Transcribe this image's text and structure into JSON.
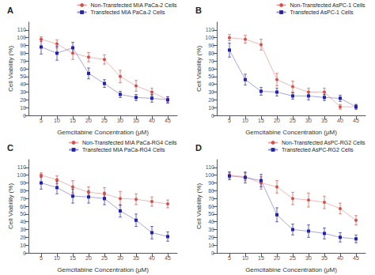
{
  "chart_data": [
    {
      "type": "line",
      "title": "A",
      "xlabel": "Gemcitabine Concentration (μM)",
      "ylabel": "Cell Viability (%)",
      "x": [
        5,
        10,
        15,
        20,
        25,
        30,
        35,
        40,
        45
      ],
      "xlim": [
        1,
        48
      ],
      "xticks": [
        5,
        10,
        15,
        20,
        25,
        30,
        35,
        40,
        45
      ],
      "ylim": [
        0,
        120
      ],
      "yticks": [
        0,
        10,
        20,
        30,
        40,
        50,
        60,
        70,
        80,
        90,
        100,
        110
      ],
      "grid": false,
      "legend": "upper right",
      "series": [
        {
          "name": "Non-Transfected MIA PaCa-2 Cells",
          "color": "#d4504a",
          "marker": "circle",
          "values": [
            98,
            92,
            80,
            75,
            72,
            50,
            38,
            30,
            20
          ],
          "errors": [
            3,
            5,
            8,
            6,
            6,
            8,
            7,
            5,
            4
          ]
        },
        {
          "name": "Transfected MIA PaCa-2 Cells",
          "color": "#2222aa",
          "marker": "square",
          "values": [
            88,
            80,
            87,
            54,
            41,
            27,
            23,
            22,
            20
          ],
          "errors": [
            9,
            9,
            7,
            7,
            5,
            4,
            4,
            5,
            4
          ]
        }
      ]
    },
    {
      "type": "line",
      "title": "B",
      "xlabel": "Gemcitabine Concentration (μM)",
      "ylabel": "Cell Viability (%)",
      "x": [
        5,
        10,
        15,
        20,
        25,
        30,
        35,
        40,
        45
      ],
      "xlim": [
        1,
        48
      ],
      "xticks": [
        5,
        10,
        15,
        20,
        25,
        30,
        35,
        40,
        45
      ],
      "ylim": [
        0,
        120
      ],
      "yticks": [
        0,
        10,
        20,
        30,
        40,
        50,
        60,
        70,
        80,
        90,
        100,
        110
      ],
      "grid": false,
      "legend": "upper right",
      "series": [
        {
          "name": "Non-Transfected AsPC-1 Cells",
          "color": "#d4504a",
          "marker": "circle",
          "values": [
            100,
            98,
            91,
            46,
            37,
            30,
            30,
            11,
            11
          ],
          "errors": [
            4,
            5,
            7,
            8,
            7,
            5,
            5,
            3,
            3
          ]
        },
        {
          "name": "Transfected AsPC-1 Cells",
          "color": "#2222aa",
          "marker": "square",
          "values": [
            84,
            46,
            31,
            30,
            25,
            25,
            23,
            22,
            11
          ],
          "errors": [
            9,
            7,
            5,
            5,
            4,
            5,
            4,
            4,
            3
          ]
        }
      ]
    },
    {
      "type": "line",
      "title": "C",
      "xlabel": "Gemcitabine Concentration (μM)",
      "ylabel": "Cell Viability (%)",
      "x": [
        5,
        10,
        15,
        20,
        25,
        30,
        35,
        40,
        45
      ],
      "xlim": [
        1,
        48
      ],
      "xticks": [
        5,
        10,
        15,
        20,
        25,
        30,
        35,
        40,
        45
      ],
      "ylim": [
        0,
        120
      ],
      "yticks": [
        0,
        10,
        20,
        30,
        40,
        50,
        60,
        70,
        80,
        90,
        100,
        110
      ],
      "grid": false,
      "legend": "upper right",
      "series": [
        {
          "name": "Non-Transfected MIA PaCa-RG4 Cells",
          "color": "#d4504a",
          "marker": "circle",
          "values": [
            100,
            94,
            85,
            78,
            76,
            70,
            69,
            66,
            63
          ],
          "errors": [
            3,
            5,
            8,
            7,
            8,
            9,
            7,
            6,
            5
          ]
        },
        {
          "name": "Transfected MIA PaCa-RG4 Cells",
          "color": "#2222aa",
          "marker": "square",
          "values": [
            90,
            84,
            73,
            72,
            70,
            54,
            42,
            26,
            21
          ],
          "errors": [
            8,
            8,
            9,
            8,
            8,
            8,
            8,
            8,
            6
          ]
        }
      ]
    },
    {
      "type": "line",
      "title": "D",
      "xlabel": "Gemcitabine Concentration (μM)",
      "ylabel": "Cell Viability (%)",
      "x": [
        5,
        10,
        15,
        20,
        25,
        30,
        35,
        40,
        45
      ],
      "xlim": [
        1,
        48
      ],
      "xticks": [
        5,
        10,
        15,
        20,
        25,
        30,
        35,
        40,
        45
      ],
      "ylim": [
        0,
        120
      ],
      "yticks": [
        0,
        10,
        20,
        30,
        40,
        50,
        60,
        70,
        80,
        90,
        100,
        110
      ],
      "grid": false,
      "legend": "upper right",
      "series": [
        {
          "name": "Non-Transfected AsPC-RG2 Cells",
          "color": "#d4504a",
          "marker": "circle",
          "values": [
            100,
            98,
            90,
            85,
            70,
            68,
            65,
            57,
            42
          ],
          "errors": [
            4,
            5,
            8,
            8,
            8,
            9,
            8,
            7,
            6
          ]
        },
        {
          "name": "Transfected AsPC-RG2 Cells",
          "color": "#2222aa",
          "marker": "square",
          "values": [
            99,
            97,
            93,
            49,
            30,
            28,
            25,
            20,
            18
          ],
          "errors": [
            5,
            7,
            8,
            9,
            7,
            8,
            7,
            6,
            5
          ]
        }
      ]
    }
  ]
}
